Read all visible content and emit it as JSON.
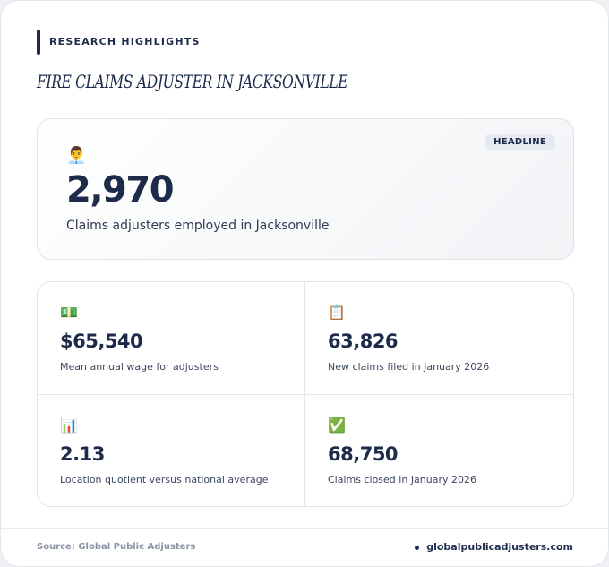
{
  "header": {
    "eyebrow": "RESEARCH HIGHLIGHTS",
    "title": "FIRE CLAIMS ADJUSTER IN JACKSONVILLE"
  },
  "headline": {
    "badge": "HEADLINE",
    "icon": "👨‍💼",
    "value": "2,970",
    "label": "Claims adjusters employed in Jacksonville"
  },
  "stats": [
    {
      "icon": "💵",
      "value": "$65,540",
      "label": "Mean annual wage for adjusters"
    },
    {
      "icon": "📋",
      "value": "63,826",
      "label": "New claims filed in January 2026"
    },
    {
      "icon": "📊",
      "value": "2.13",
      "label": "Location quotient versus national average"
    },
    {
      "icon": "✅",
      "value": "68,750",
      "label": "Claims closed in January 2026"
    }
  ],
  "footer": {
    "source": "Source: Global Public Adjusters",
    "site": "globalpublicadjusters.com"
  }
}
